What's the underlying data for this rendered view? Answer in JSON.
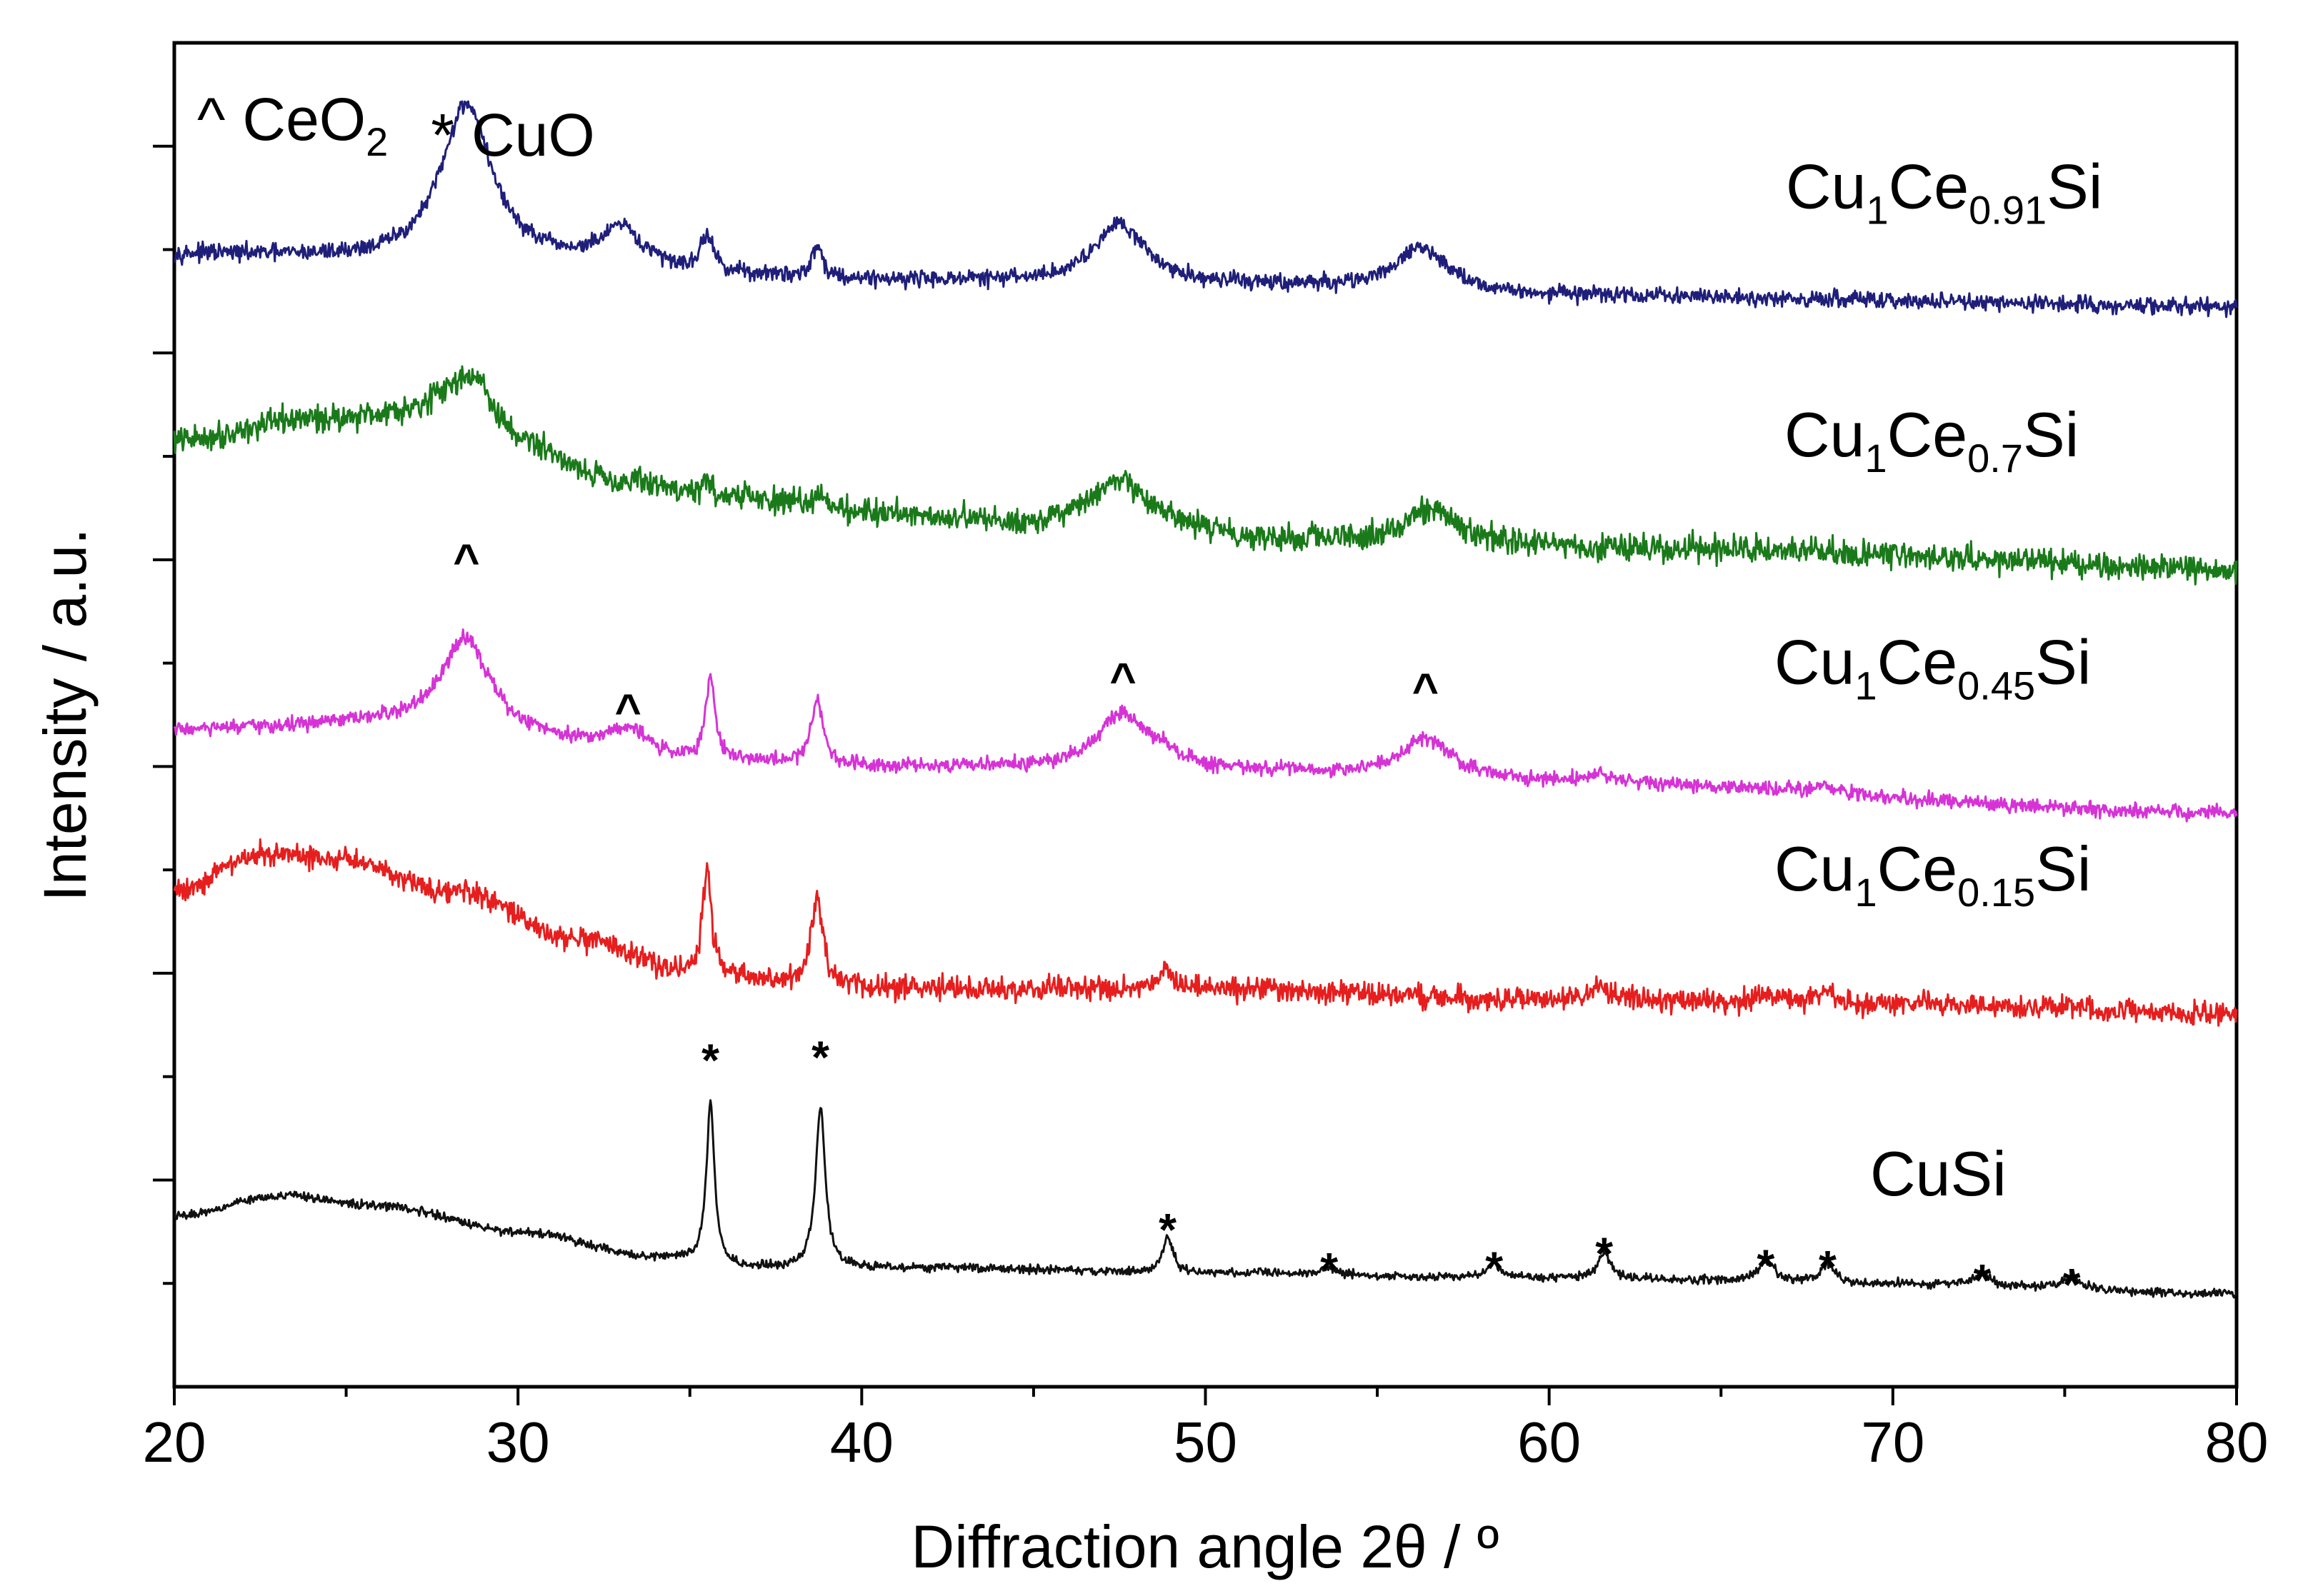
{
  "chart_data": {
    "type": "line",
    "title": "",
    "xlabel": "Diffraction angle 2θ / º",
    "ylabel": "Intensity / a.u.",
    "xlim": [
      20,
      80
    ],
    "ylim": [
      0,
      13
    ],
    "xticks": [
      "20",
      "30",
      "40",
      "50",
      "60",
      "70",
      "80"
    ],
    "yticks": [],
    "grid": false,
    "legend": {
      "position": "top-left",
      "entries": [
        {
          "symbol": "^",
          "main": "CeO",
          "sub": "2"
        },
        {
          "symbol": "*",
          "main": "CuO",
          "sub": ""
        }
      ]
    },
    "series": [
      {
        "name": "Cu1Ce0.91Si",
        "label_parts": [
          {
            "t": "Cu",
            "sub": false
          },
          {
            "t": "1",
            "sub": true
          },
          {
            "t": "Ce",
            "sub": false
          },
          {
            "t": "0.91",
            "sub": true
          },
          {
            "t": "Si",
            "sub": false
          }
        ],
        "color": "#1f1f7a",
        "offset": 10.4,
        "base": [
          [
            20,
            0.55
          ],
          [
            30,
            0.45
          ],
          [
            40,
            0.3
          ],
          [
            50,
            0.25
          ],
          [
            60,
            0.15
          ],
          [
            80,
            0.05
          ]
        ],
        "noise": 0.05,
        "peaks": [
          [
            28.5,
            1.55,
            0.9
          ],
          [
            33.0,
            0.35,
            0.7
          ],
          [
            35.5,
            0.35,
            0.2
          ],
          [
            38.7,
            0.3,
            0.2
          ],
          [
            47.5,
            0.6,
            0.9
          ],
          [
            56.3,
            0.42,
            1.0
          ]
        ]
      },
      {
        "name": "Cu1Ce0.7Si",
        "label_parts": [
          {
            "t": "Cu",
            "sub": false
          },
          {
            "t": "1",
            "sub": true
          },
          {
            "t": "Ce",
            "sub": false
          },
          {
            "t": "0.7",
            "sub": true
          },
          {
            "t": "Si",
            "sub": false
          }
        ],
        "color": "#1a7a1a",
        "offset": 8.0,
        "base": [
          [
            20,
            1.15
          ],
          [
            24,
            1.35
          ],
          [
            27.5,
            1.4
          ],
          [
            30,
            1.05
          ],
          [
            33,
            0.75
          ],
          [
            36,
            0.6
          ],
          [
            40,
            0.45
          ],
          [
            46,
            0.3
          ],
          [
            55,
            0.15
          ],
          [
            65,
            0.1
          ],
          [
            80,
            -0.1
          ]
        ],
        "noise": 0.08,
        "peaks": [
          [
            28.7,
            0.55,
            0.8
          ],
          [
            35.5,
            0.12,
            0.2
          ],
          [
            38.8,
            0.16,
            0.25
          ],
          [
            47.5,
            0.45,
            1.1
          ],
          [
            56.5,
            0.35,
            0.9
          ]
        ]
      },
      {
        "name": "Cu1Ce0.45Si",
        "label_parts": [
          {
            "t": "Cu",
            "sub": false
          },
          {
            "t": "1",
            "sub": true
          },
          {
            "t": "Ce",
            "sub": false
          },
          {
            "t": "0.45",
            "sub": true
          },
          {
            "t": "Si",
            "sub": false
          }
        ],
        "color": "#d633d6",
        "offset": 5.8,
        "base": [
          [
            20,
            0.55
          ],
          [
            26,
            0.6
          ],
          [
            30,
            0.45
          ],
          [
            35,
            0.25
          ],
          [
            40,
            0.2
          ],
          [
            50,
            0.15
          ],
          [
            60,
            0.05
          ],
          [
            80,
            -0.25
          ]
        ],
        "noise": 0.045,
        "peaks": [
          [
            28.5,
            0.95,
            0.85
          ],
          [
            33.2,
            0.25,
            0.7
          ],
          [
            35.6,
            0.8,
            0.16
          ],
          [
            38.7,
            0.65,
            0.2
          ],
          [
            47.6,
            0.55,
            0.9
          ],
          [
            48.8,
            0.12,
            0.3
          ],
          [
            56.4,
            0.4,
            0.9
          ],
          [
            61.5,
            0.08,
            0.3
          ],
          [
            68.0,
            0.08,
            0.3
          ]
        ]
      },
      {
        "name": "Cu1Ce0.15Si",
        "label_parts": [
          {
            "t": "Cu",
            "sub": false
          },
          {
            "t": "1",
            "sub": true
          },
          {
            "t": "Ce",
            "sub": false
          },
          {
            "t": "0.15",
            "sub": true
          },
          {
            "t": "Si",
            "sub": false
          }
        ],
        "color": "#e61e1e",
        "offset": 3.8,
        "base": [
          [
            20,
            1.0
          ],
          [
            22.5,
            1.35
          ],
          [
            25,
            1.3
          ],
          [
            28,
            1.0
          ],
          [
            32,
            0.5
          ],
          [
            35,
            0.2
          ],
          [
            38,
            0.1
          ],
          [
            42,
            0.05
          ],
          [
            50,
            0.05
          ],
          [
            60,
            -0.05
          ],
          [
            70,
            -0.1
          ],
          [
            80,
            -0.2
          ]
        ],
        "noise": 0.07,
        "peaks": [
          [
            35.5,
            1.05,
            0.15
          ],
          [
            38.7,
            0.8,
            0.2
          ],
          [
            48.8,
            0.25,
            0.2
          ],
          [
            61.5,
            0.15,
            0.25
          ],
          [
            66.3,
            0.08,
            0.3
          ],
          [
            68.0,
            0.12,
            0.3
          ],
          [
            75.2,
            0.05,
            0.3
          ]
        ]
      },
      {
        "name": "CuSi",
        "label_parts": [
          {
            "t": "CuSi",
            "sub": false
          }
        ],
        "color": "#111111",
        "offset": 1.2,
        "base": [
          [
            20,
            0.45
          ],
          [
            23,
            0.65
          ],
          [
            26,
            0.55
          ],
          [
            30,
            0.3
          ],
          [
            34,
            0.05
          ],
          [
            37,
            -0.05
          ],
          [
            42,
            -0.05
          ],
          [
            50,
            -0.1
          ],
          [
            60,
            -0.15
          ],
          [
            70,
            -0.2
          ],
          [
            80,
            -0.3
          ]
        ],
        "noise": 0.025,
        "peaks": [
          [
            35.6,
            1.55,
            0.14
          ],
          [
            38.8,
            1.55,
            0.17
          ],
          [
            48.9,
            0.35,
            0.18
          ],
          [
            53.6,
            0.07,
            0.25
          ],
          [
            58.4,
            0.12,
            0.25
          ],
          [
            61.6,
            0.25,
            0.22
          ],
          [
            66.3,
            0.2,
            0.3
          ],
          [
            68.1,
            0.18,
            0.25
          ],
          [
            72.6,
            0.12,
            0.25
          ],
          [
            75.2,
            0.12,
            0.3
          ]
        ]
      }
    ],
    "annotations": [
      {
        "symbol": "^",
        "x": 28.5,
        "y": 8.05
      },
      {
        "symbol": "^",
        "x": 33.2,
        "y": 6.6
      },
      {
        "symbol": "^",
        "x": 47.6,
        "y": 6.9
      },
      {
        "symbol": "^",
        "x": 56.4,
        "y": 6.8
      },
      {
        "symbol": "*",
        "x": 35.6,
        "y": 3.27
      },
      {
        "symbol": "*",
        "x": 38.8,
        "y": 3.3
      },
      {
        "symbol": "*",
        "x": 48.9,
        "y": 1.63
      },
      {
        "symbol": "*",
        "x": 53.6,
        "y": 1.25
      },
      {
        "symbol": "*",
        "x": 58.4,
        "y": 1.26
      },
      {
        "symbol": "*",
        "x": 61.6,
        "y": 1.4
      },
      {
        "symbol": "*",
        "x": 66.3,
        "y": 1.28
      },
      {
        "symbol": "*",
        "x": 68.1,
        "y": 1.27
      },
      {
        "symbol": "*",
        "x": 72.6,
        "y": 1.14
      },
      {
        "symbol": "*",
        "x": 75.2,
        "y": 1.1
      }
    ]
  }
}
